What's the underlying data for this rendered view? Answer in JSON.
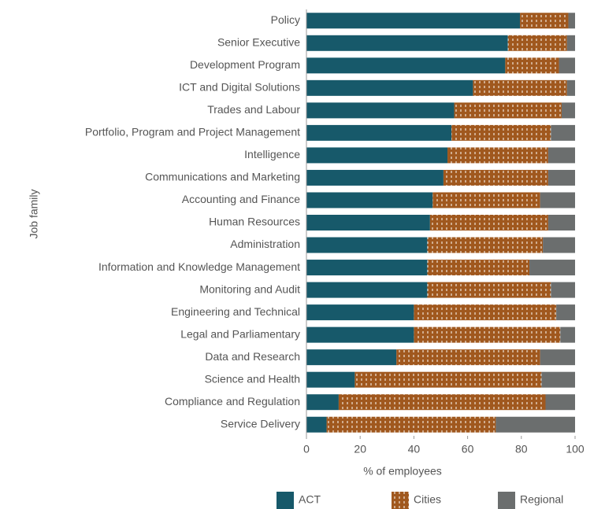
{
  "chart_data": {
    "type": "stacked-barh",
    "categories": [
      "Policy",
      "Senior Executive",
      "Development Program",
      "ICT and Digital Solutions",
      "Trades and Labour",
      "Portfolio, Program and Project Management",
      "Intelligence",
      "Communications and Marketing",
      "Accounting and Finance",
      "Human Resources",
      "Administration",
      "Information and Knowledge Management",
      "Monitoring and Audit",
      "Engineering and Technical",
      "Legal and Parliamentary",
      "Data and Research",
      "Science and Health",
      "Compliance and Regulation",
      "Service Delivery"
    ],
    "series": [
      {
        "name": "ACT",
        "color": "#17596a",
        "values": [
          79.5,
          75,
          74,
          62,
          55,
          54,
          52.5,
          51,
          47,
          46,
          45,
          45,
          45,
          40,
          40,
          33.5,
          18,
          12,
          7.5
        ]
      },
      {
        "name": "Cities",
        "color": "#a0581e",
        "values": [
          18,
          22,
          20,
          35,
          40,
          37,
          37.5,
          39,
          40,
          44,
          43,
          38,
          46,
          53,
          54.5,
          53.5,
          69.5,
          77,
          63
        ]
      },
      {
        "name": "Regional",
        "color": "#6b6e6e",
        "values": [
          2.5,
          3,
          6,
          3,
          5,
          9,
          10,
          10,
          13,
          10,
          12,
          17,
          9,
          7,
          5.5,
          13,
          12.5,
          11,
          29.5
        ]
      }
    ],
    "xlabel": "% of employees",
    "ylabel": "Job family",
    "xlim": [
      0,
      100
    ],
    "xticks": [
      0,
      20,
      40,
      60,
      80,
      100
    ]
  }
}
